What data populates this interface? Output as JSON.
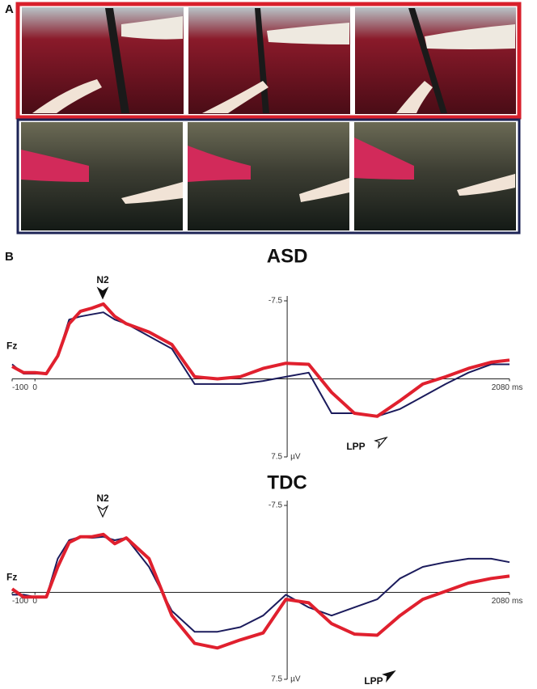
{
  "panel_labels": [
    "A",
    "B"
  ],
  "chart_data": [
    {
      "type": "line",
      "title": "ASD",
      "channel": "Fz",
      "x_unit": "ms",
      "y_unit": "µV",
      "annotations": [
        "N2",
        "LPP"
      ],
      "x": [
        -100,
        -50,
        0,
        50,
        100,
        150,
        200,
        250,
        300,
        350,
        400,
        500,
        600,
        700,
        800,
        900,
        1000,
        1100,
        1200,
        1300,
        1400,
        1500,
        1600,
        1700,
        1800,
        1900,
        2000,
        2080
      ],
      "xlim": [
        -100,
        2080
      ],
      "xticks": [
        -100,
        0,
        2080
      ],
      "ylim": [
        7.5,
        -7.5
      ],
      "yticks": [
        -7.5,
        7.5
      ],
      "series": [
        {
          "color": "#1b1b5c",
          "values": [
            -1.4,
            -0.5,
            -0.5,
            -0.5,
            -2.2,
            -5.7,
            -6.0,
            -6.2,
            -6.4,
            -5.7,
            -5.3,
            -4.1,
            -2.9,
            0.5,
            0.5,
            0.5,
            0.2,
            -0.2,
            -0.6,
            3.3,
            3.3,
            3.6,
            2.9,
            1.7,
            0.5,
            -0.6,
            -1.4,
            -1.4
          ]
        },
        {
          "color": "#e0202e",
          "values": [
            -1.2,
            -0.6,
            -0.6,
            -0.5,
            -2.2,
            -5.3,
            -6.5,
            -6.8,
            -7.2,
            -6.0,
            -5.3,
            -4.5,
            -3.3,
            -0.2,
            0,
            -0.2,
            -1.0,
            -1.5,
            -1.4,
            1.3,
            3.3,
            3.6,
            2.1,
            0.5,
            -0.2,
            -1.0,
            -1.6,
            -1.8
          ]
        }
      ]
    },
    {
      "type": "line",
      "title": "TDC",
      "channel": "Fz",
      "x_unit": "ms",
      "y_unit": "µV",
      "annotations": [
        "N2",
        "LPP"
      ],
      "x": [
        -100,
        -50,
        0,
        50,
        100,
        150,
        200,
        250,
        300,
        350,
        400,
        500,
        600,
        700,
        800,
        900,
        1000,
        1100,
        1200,
        1300,
        1400,
        1500,
        1600,
        1700,
        1800,
        1900,
        2000,
        2080
      ],
      "xlim": [
        -100,
        2080
      ],
      "xticks": [
        -100,
        0,
        2080
      ],
      "ylim": [
        7.5,
        -7.5
      ],
      "yticks": [
        -7.5,
        7.5
      ],
      "series": [
        {
          "color": "#1b1b5c",
          "values": [
            0.2,
            0.2,
            0.4,
            0.4,
            -2.9,
            -4.5,
            -4.8,
            -4.7,
            -4.8,
            -4.5,
            -4.7,
            -2.2,
            1.6,
            3.4,
            3.4,
            3.0,
            2.0,
            0.2,
            1.3,
            2.0,
            1.3,
            0.6,
            -1.2,
            -2.2,
            -2.6,
            -2.9,
            -2.9,
            -2.6
          ]
        },
        {
          "color": "#e0202e",
          "values": [
            -0.3,
            0.4,
            0.4,
            0.4,
            -2.2,
            -4.3,
            -4.8,
            -4.8,
            -5.0,
            -4.2,
            -4.7,
            -2.9,
            2.0,
            4.4,
            4.8,
            4.1,
            3.5,
            0.6,
            0.9,
            2.7,
            3.6,
            3.7,
            2.0,
            0.6,
            -0.1,
            -0.8,
            -1.2,
            -1.4
          ]
        }
      ]
    }
  ]
}
